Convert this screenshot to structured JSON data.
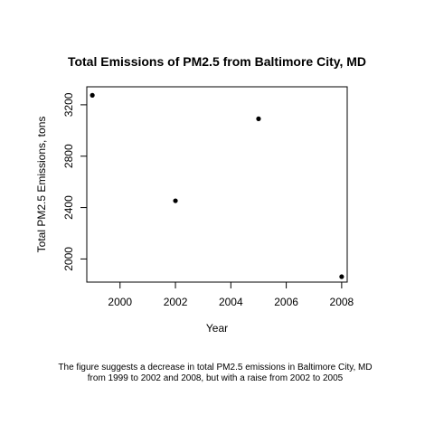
{
  "chart_data": {
    "type": "scatter",
    "title": "Total Emissions of PM2.5 from Baltimore City, MD",
    "xlabel": "Year",
    "ylabel": "Total PM2.5 Emissions, tons",
    "xlim": [
      1998.8,
      2008.2
    ],
    "ylim": [
      1820,
      3340
    ],
    "xticks": [
      2000,
      2002,
      2004,
      2006,
      2008
    ],
    "yticks": [
      2000,
      2400,
      2800,
      3200
    ],
    "grid": false,
    "series": [
      {
        "x": [
          1999,
          2002,
          2005,
          2008
        ],
        "y": [
          3274,
          2453,
          3091,
          1862
        ]
      }
    ],
    "caption": [
      "The figure suggests a decrease in total PM2.5 emissions in Baltimore City, MD",
      "from 1999 to 2002 and 2008, but with a raise from 2002 to 2005"
    ]
  }
}
